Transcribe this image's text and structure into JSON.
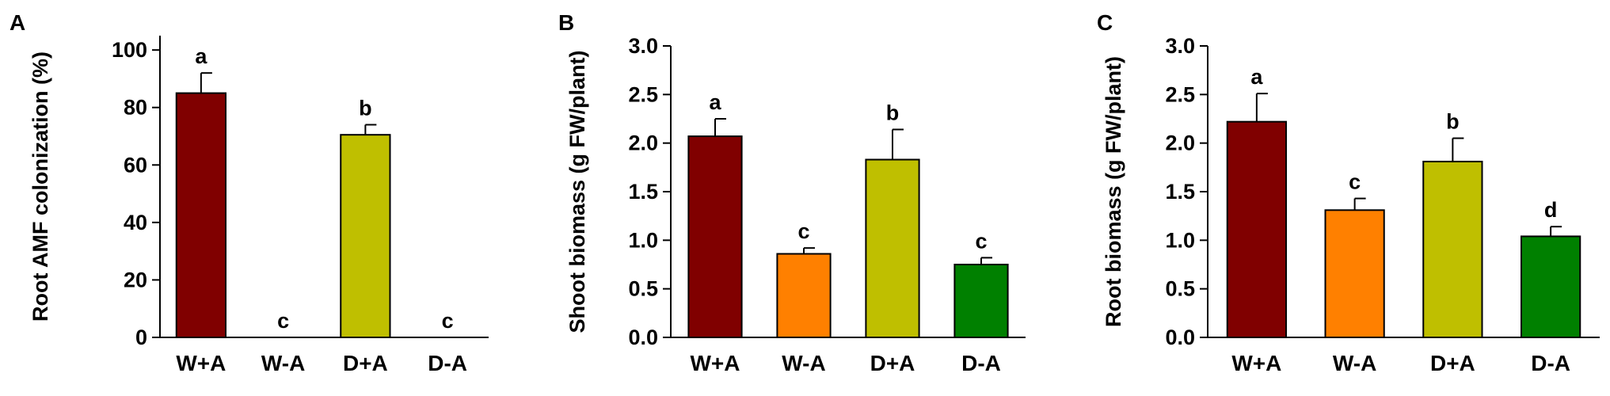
{
  "colors": {
    "W+A": "#800000",
    "W-A": "#ff8000",
    "D+A": "#bfbf00",
    "D-A": "#008000"
  },
  "chart_data": [
    {
      "panel": "A",
      "type": "bar",
      "categories": [
        "W+A",
        "W-A",
        "D+A",
        "D-A"
      ],
      "values": [
        85,
        0,
        70.5,
        0
      ],
      "errors": [
        7,
        0,
        3.5,
        0
      ],
      "letters": [
        "a",
        "c",
        "b",
        "c"
      ],
      "ylabel": "Root AMF colonization (%)",
      "ylim": [
        0,
        105
      ],
      "yticks": [
        "0",
        "20",
        "40",
        "60",
        "80",
        "100"
      ]
    },
    {
      "panel": "B",
      "type": "bar",
      "categories": [
        "W+A",
        "W-A",
        "D+A",
        "D-A"
      ],
      "values": [
        2.07,
        0.86,
        1.83,
        0.75
      ],
      "errors": [
        0.18,
        0.06,
        0.31,
        0.07
      ],
      "letters": [
        "a",
        "c",
        "b",
        "c"
      ],
      "ylabel": "Shoot biomass (g FW/plant)",
      "ylim": [
        0,
        3.0
      ],
      "yticks": [
        "0.0",
        "0.5",
        "1.0",
        "1.5",
        "2.0",
        "2.5",
        "3.0"
      ]
    },
    {
      "panel": "C",
      "type": "bar",
      "categories": [
        "W+A",
        "W-A",
        "D+A",
        "D-A"
      ],
      "values": [
        2.22,
        1.31,
        1.81,
        1.04
      ],
      "errors": [
        0.29,
        0.12,
        0.24,
        0.1
      ],
      "letters": [
        "a",
        "c",
        "b",
        "d"
      ],
      "ylabel": "Root biomass (g FW/plant)",
      "ylim": [
        0,
        3.0
      ],
      "yticks": [
        "0.0",
        "0.5",
        "1.0",
        "1.5",
        "2.0",
        "2.5",
        "3.0"
      ]
    }
  ]
}
